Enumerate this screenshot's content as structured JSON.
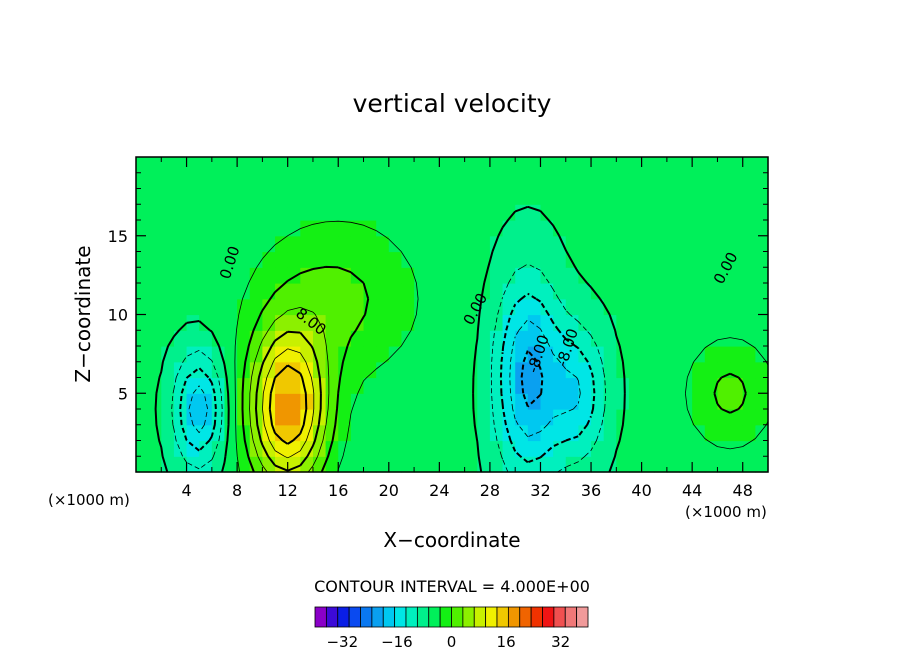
{
  "chart_data": {
    "type": "heatmap",
    "title": "vertical velocity",
    "xlabel": "X−coordinate",
    "ylabel": "Z−coordinate",
    "x_unit_left": "(×1000 m)",
    "x_unit_right": "(×1000 m)",
    "xlim": [
      0,
      50
    ],
    "ylim": [
      0,
      20
    ],
    "xticks": [
      4,
      8,
      12,
      16,
      20,
      24,
      28,
      32,
      36,
      40,
      44,
      48
    ],
    "yticks": [
      5,
      10,
      15
    ],
    "contour_interval_text": "CONTOUR INTERVAL =  4.000E+00",
    "contour_labels": [
      {
        "text": "0.00",
        "x": 7.8,
        "y": 13.2,
        "rot": -72
      },
      {
        "text": "8.00",
        "x": 13.6,
        "y": 9.3,
        "rot": 38
      },
      {
        "text": "0.00",
        "x": 27.2,
        "y": 10.2,
        "rot": -62
      },
      {
        "text": "-8.00",
        "x": 32.2,
        "y": 7.4,
        "rot": -72
      },
      {
        "text": "-8.00",
        "x": 34.5,
        "y": 7.8,
        "rot": -72
      },
      {
        "text": "0.00",
        "x": 47.0,
        "y": 12.8,
        "rot": -62
      }
    ],
    "features": [
      {
        "type": "updraft",
        "x": 12,
        "z": 4,
        "max": 28,
        "sx": 2.2,
        "sz": 3.5
      },
      {
        "type": "updraft-plume",
        "x": 16,
        "z": 11,
        "max": 8,
        "sx": 4.5,
        "sz": 3.5
      },
      {
        "type": "downdraft",
        "x": 5,
        "z": 4,
        "min": -16,
        "sx": 1.4,
        "sz": 2.5
      },
      {
        "type": "downdraft",
        "x": 31,
        "z": 6,
        "min": -18,
        "sx": 1.8,
        "sz": 4.5
      },
      {
        "type": "downdraft",
        "x": 35,
        "z": 5,
        "min": -12,
        "sx": 1.6,
        "sz": 3.0
      },
      {
        "type": "updraft",
        "x": 47,
        "z": 5,
        "max": 8,
        "sx": 2.5,
        "sz": 2.5
      }
    ],
    "colorbar": {
      "min": -40,
      "max": 40,
      "step": 4,
      "tick_labels": [
        "-32",
        "-16",
        "0",
        "16",
        "32"
      ],
      "tick_values": [
        -32,
        -16,
        0,
        16,
        32
      ],
      "colors": [
        "#8a00c8",
        "#3c0ad8",
        "#0a1ee6",
        "#0a4af0",
        "#0a78f0",
        "#0aa0f0",
        "#00c8f0",
        "#00e6e6",
        "#00f0be",
        "#00f08c",
        "#00f05a",
        "#14f014",
        "#50f000",
        "#8cf000",
        "#c8f000",
        "#f0f000",
        "#f0c800",
        "#f09600",
        "#f06400",
        "#f03200",
        "#f01414",
        "#f05050",
        "#f07878",
        "#f09a9a"
      ]
    }
  }
}
